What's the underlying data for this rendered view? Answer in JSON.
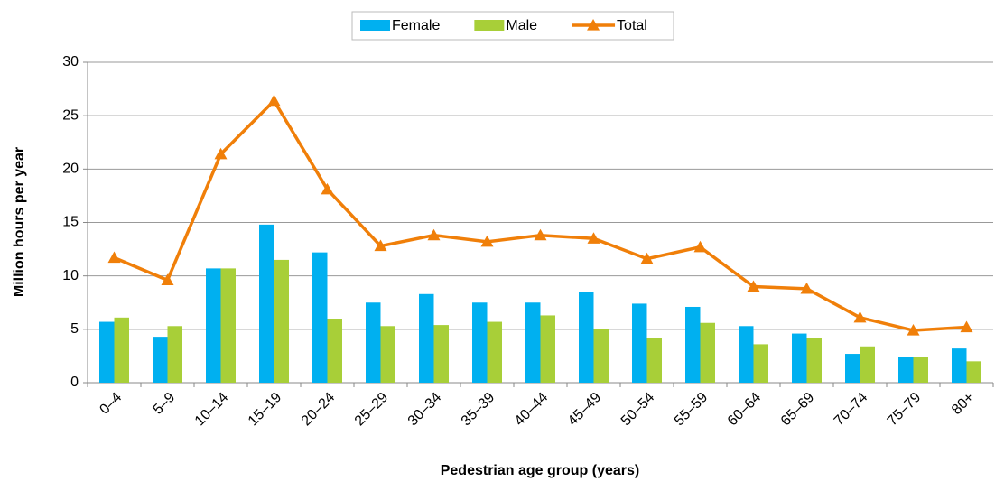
{
  "chart_data": {
    "type": "bar_line",
    "xlabel": "Pedestrian age group (years)",
    "ylabel": "Million hours per year",
    "categories": [
      "0–4",
      "5–9",
      "10–14",
      "15–19",
      "20–24",
      "25–29",
      "30–34",
      "35–39",
      "40–44",
      "45–49",
      "50–54",
      "55–59",
      "60–64",
      "65–69",
      "70–74",
      "75–79",
      "80+"
    ],
    "series": [
      {
        "name": "Female",
        "type": "bar",
        "color": "#00b0f0",
        "values": [
          5.7,
          4.3,
          10.7,
          14.8,
          12.2,
          7.5,
          8.3,
          7.5,
          7.5,
          8.5,
          7.4,
          7.1,
          5.3,
          4.6,
          2.7,
          2.4,
          3.2
        ]
      },
      {
        "name": "Male",
        "type": "bar",
        "color": "#a8cf38",
        "values": [
          6.1,
          5.3,
          10.7,
          11.5,
          6.0,
          5.3,
          5.4,
          5.7,
          6.3,
          5.0,
          4.2,
          5.6,
          3.6,
          4.2,
          3.4,
          2.4,
          2.0
        ]
      },
      {
        "name": "Total",
        "type": "line",
        "color": "#f07f09",
        "values": [
          11.7,
          9.6,
          21.4,
          26.4,
          18.1,
          12.8,
          13.8,
          13.2,
          13.8,
          13.5,
          11.6,
          12.7,
          9.0,
          8.8,
          6.1,
          4.9,
          5.2
        ]
      }
    ],
    "ylim": [
      0,
      30
    ],
    "yticks": [
      0,
      5,
      10,
      15,
      20,
      25,
      30
    ],
    "grid": true,
    "legend": "top"
  }
}
